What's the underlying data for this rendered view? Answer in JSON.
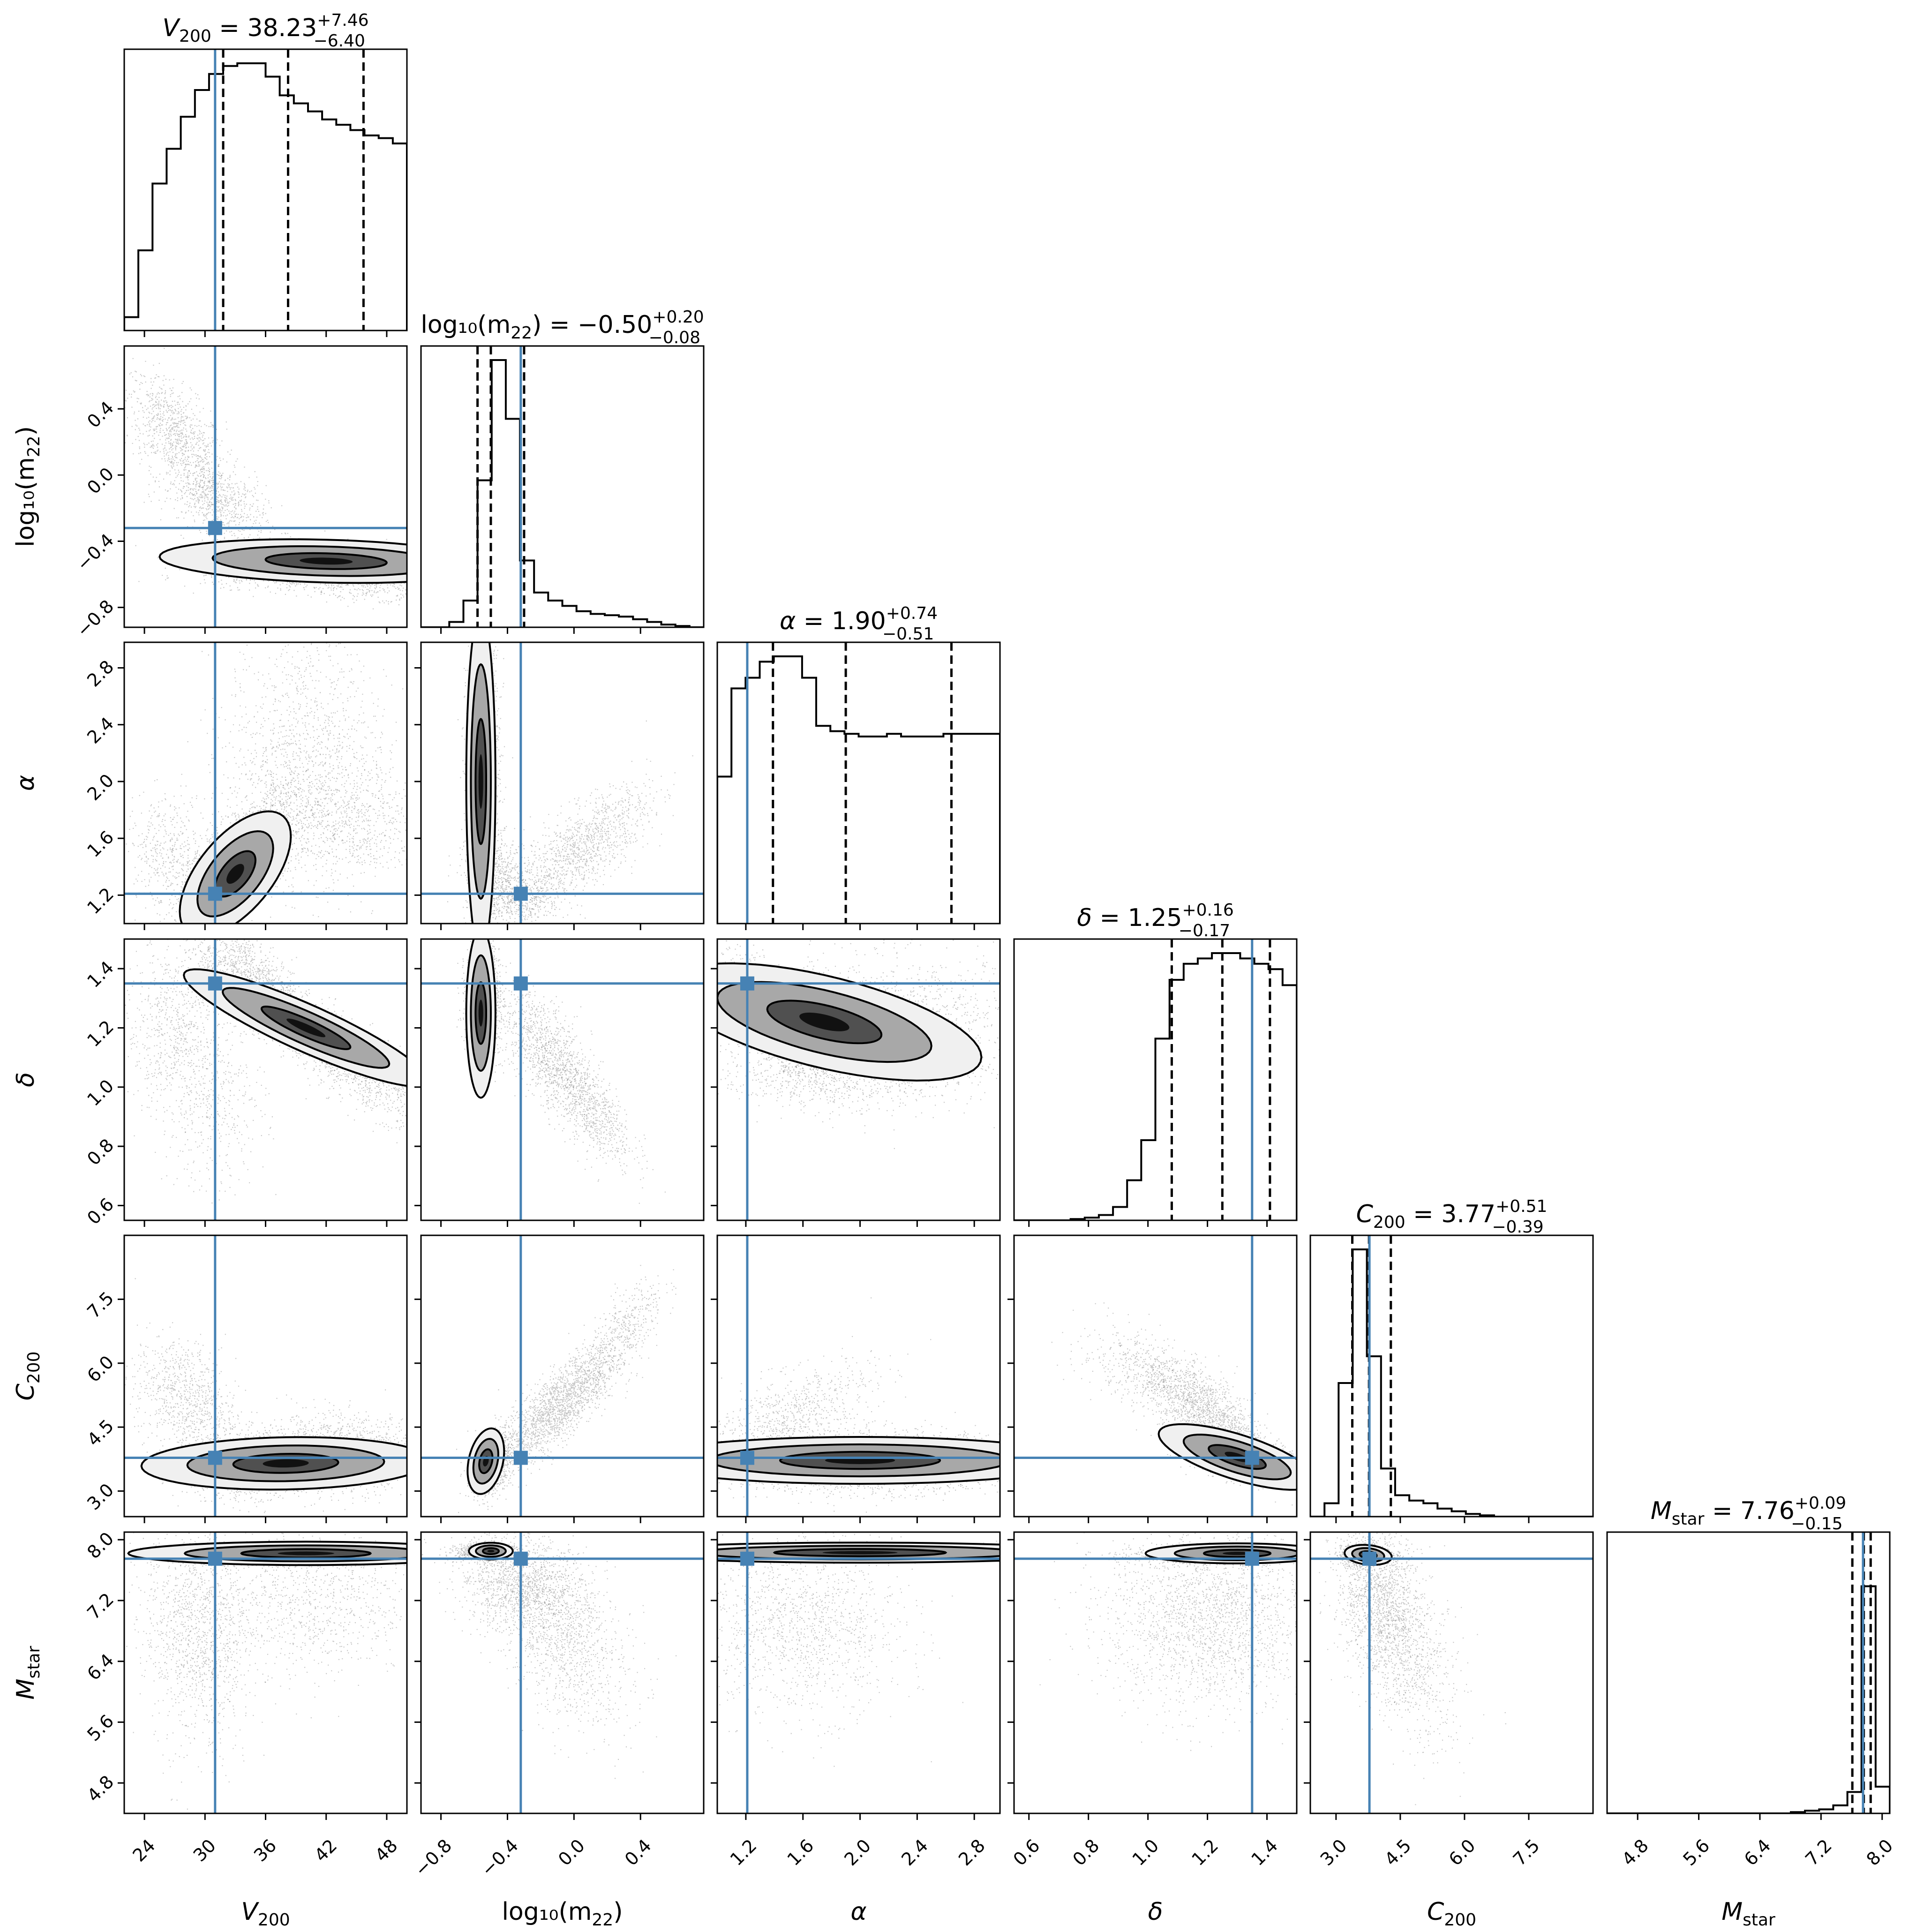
{
  "chart_data": {
    "type": "corner",
    "truth_color": "#4682b4",
    "parameters": [
      {
        "key": "V200",
        "label": "V",
        "sub": "200",
        "italic": true,
        "ticks": [
          "24",
          "30",
          "36",
          "42",
          "48"
        ],
        "tick_values": [
          24,
          30,
          36,
          42,
          48
        ],
        "range": [
          22,
          50
        ],
        "title_value": "38.23",
        "title_plus": "+7.46",
        "title_minus": "−6.40",
        "quantiles": [
          31.8,
          38.23,
          45.7
        ],
        "truth": 31.0
      },
      {
        "key": "log10m22",
        "label": "log₁₀(m",
        "sub": "22",
        "suffix": ")",
        "italic": false,
        "ticks": [
          "−0.8",
          "−0.4",
          "0.0",
          "0.4"
        ],
        "tick_values": [
          -0.8,
          -0.4,
          0.0,
          0.4
        ],
        "range": [
          -0.92,
          0.78
        ],
        "title_value": "−0.50",
        "title_plus": "+0.20",
        "title_minus": "−0.08",
        "quantiles": [
          -0.58,
          -0.5,
          -0.3
        ],
        "truth": -0.32
      },
      {
        "key": "alpha",
        "label": "α",
        "sub": "",
        "italic": true,
        "ticks": [
          "1.2",
          "1.6",
          "2.0",
          "2.4",
          "2.8"
        ],
        "tick_values": [
          1.2,
          1.6,
          2.0,
          2.4,
          2.8
        ],
        "range": [
          1.0,
          2.98
        ],
        "title_value": "1.90",
        "title_plus": "+0.74",
        "title_minus": "−0.51",
        "quantiles": [
          1.39,
          1.9,
          2.64
        ],
        "truth": 1.21
      },
      {
        "key": "delta",
        "label": "δ",
        "sub": "",
        "italic": true,
        "ticks": [
          "0.6",
          "0.8",
          "1.0",
          "1.2",
          "1.4"
        ],
        "tick_values": [
          0.6,
          0.8,
          1.0,
          1.2,
          1.4
        ],
        "range": [
          0.55,
          1.5
        ],
        "title_value": "1.25",
        "title_plus": "+0.16",
        "title_minus": "−0.17",
        "quantiles": [
          1.08,
          1.25,
          1.41
        ],
        "truth": 1.35
      },
      {
        "key": "C200",
        "label": "C",
        "sub": "200",
        "italic": true,
        "ticks": [
          "3.0",
          "4.5",
          "6.0",
          "7.5"
        ],
        "tick_values": [
          3.0,
          4.5,
          6.0,
          7.5
        ],
        "range": [
          2.4,
          9.0
        ],
        "title_value": "3.77",
        "title_plus": "+0.51",
        "title_minus": "−0.39",
        "quantiles": [
          3.38,
          3.77,
          4.28
        ],
        "truth": 3.78
      },
      {
        "key": "Mstar",
        "label": "M",
        "sub": "star",
        "italic": true,
        "ticks": [
          "4.8",
          "5.6",
          "6.4",
          "7.2",
          "8.0"
        ],
        "tick_values": [
          4.8,
          5.6,
          6.4,
          7.2,
          8.0
        ],
        "range": [
          4.4,
          8.1
        ],
        "title_value": "7.76",
        "title_plus": "+0.09",
        "title_minus": "−0.15",
        "quantiles": [
          7.61,
          7.76,
          7.85
        ],
        "truth": 7.75
      }
    ],
    "histograms": [
      [
        0.05,
        0.3,
        0.55,
        0.68,
        0.8,
        0.9,
        0.96,
        0.99,
        1.0,
        1.0,
        0.95,
        0.88,
        0.85,
        0.82,
        0.79,
        0.77,
        0.75,
        0.73,
        0.72,
        0.7
      ],
      [
        0.0,
        0.0,
        0.02,
        0.1,
        0.55,
        1.0,
        0.78,
        0.25,
        0.13,
        0.1,
        0.08,
        0.06,
        0.05,
        0.045,
        0.04,
        0.03,
        0.02,
        0.01,
        0.005,
        0.0
      ],
      [
        0.55,
        0.88,
        0.92,
        0.98,
        1.0,
        1.0,
        0.92,
        0.74,
        0.72,
        0.71,
        0.7,
        0.7,
        0.71,
        0.7,
        0.7,
        0.7,
        0.71,
        0.71,
        0.71,
        0.71
      ],
      [
        0.0,
        0.0,
        0.0,
        0.0,
        0.005,
        0.01,
        0.02,
        0.05,
        0.15,
        0.3,
        0.68,
        0.9,
        0.96,
        0.98,
        1.0,
        1.0,
        0.98,
        0.96,
        0.94,
        0.88
      ],
      [
        0.0,
        0.05,
        0.5,
        1.0,
        0.6,
        0.18,
        0.08,
        0.06,
        0.05,
        0.03,
        0.02,
        0.01,
        0.005,
        0.0,
        0.0,
        0.0,
        0.0,
        0.0,
        0.0,
        0.0
      ],
      [
        0.0,
        0.0,
        0.0,
        0.0,
        0.0,
        0.0,
        0.0,
        0.0,
        0.0,
        0.0,
        0.0,
        0.0,
        0.0,
        0.005,
        0.01,
        0.015,
        0.03,
        0.08,
        0.85,
        0.1
      ]
    ]
  }
}
